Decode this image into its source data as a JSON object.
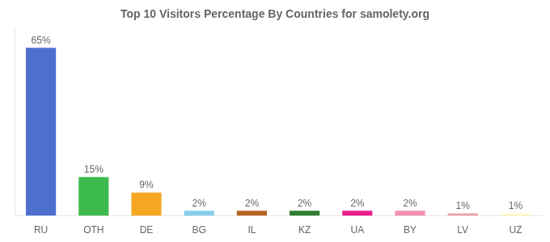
{
  "chart_data": {
    "type": "bar",
    "title": "Top 10 Visitors Percentage By Countries for samolety.org",
    "categories": [
      "RU",
      "OTH",
      "DE",
      "BG",
      "IL",
      "KZ",
      "UA",
      "BY",
      "LV",
      "UZ"
    ],
    "values": [
      65,
      15,
      9,
      2,
      2,
      2,
      2,
      2,
      1,
      1
    ],
    "value_labels": [
      "65%",
      "15%",
      "9%",
      "2%",
      "2%",
      "2%",
      "2%",
      "2%",
      "1%",
      "1%"
    ],
    "colors": [
      "#4f6fce",
      "#3dba4e",
      "#f5a623",
      "#87ceeb",
      "#b5651d",
      "#2e7d32",
      "#e91e8c",
      "#f48fb1",
      "#f4a0a0",
      "#ffffc0"
    ],
    "ylim": [
      0,
      72
    ],
    "grid": false,
    "data_labels": true,
    "tick_labels": "x"
  }
}
